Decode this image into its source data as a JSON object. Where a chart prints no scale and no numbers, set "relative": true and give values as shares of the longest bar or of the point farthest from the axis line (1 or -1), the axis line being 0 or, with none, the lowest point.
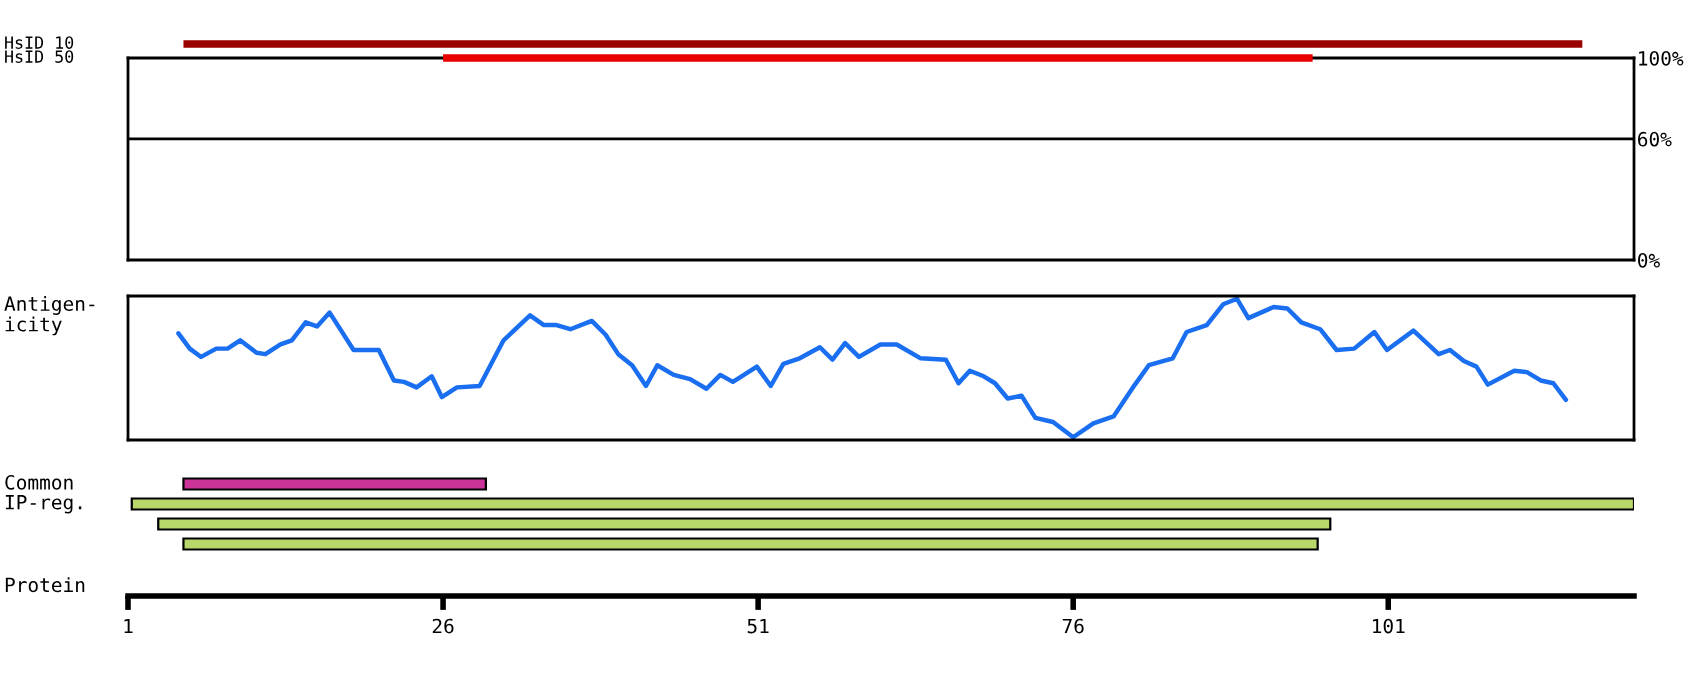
{
  "chart_data": [
    {
      "type": "bar",
      "orientation": "horizontal",
      "categories": [
        "HsID 10",
        "HsID 50"
      ],
      "base": [
        5.4,
        26
      ],
      "values": [
        111,
        69
      ],
      "colors": [
        "#990000",
        "#e80000"
      ],
      "xlim": [
        1,
        120.5
      ],
      "tick_labels": false
    },
    {
      "type": "line",
      "xlim": [
        1,
        120.5
      ],
      "ylim": [
        0,
        100
      ],
      "yticks": [
        {
          "value": 0,
          "label": "0%"
        },
        {
          "value": 60,
          "label": "60%"
        },
        {
          "value": 100,
          "label": "100%"
        }
      ],
      "ref_lines": [
        {
          "axis": "y",
          "value": 60,
          "color": "#000000"
        }
      ],
      "tick_labels": "y"
    },
    {
      "type": "line",
      "relative": true,
      "ylabel": "Antigen-\nicity",
      "xlim": [
        1,
        120.5
      ],
      "tick_labels": false,
      "series": [
        {
          "color": "#1a6ef0",
          "x": [
            5.0,
            5.9,
            6.8,
            8.0,
            8.9,
            9.9,
            11.2,
            11.9,
            13.1,
            14.0,
            15.1,
            16.0,
            17.0,
            18.9,
            20.9,
            22.1,
            22.9,
            23.9,
            25.1,
            25.9,
            27.1,
            28.9,
            30.8,
            32.9,
            34.0,
            35.0,
            36.1,
            37.8,
            38.9,
            39.9,
            41.0,
            42.1,
            43.0,
            44.3,
            45.6,
            46.9,
            48.0,
            49.0,
            50.9,
            52.0,
            53.0,
            54.3,
            55.9,
            56.9,
            57.9,
            59.0,
            60.7,
            62.0,
            63.9,
            65.9,
            66.9,
            67.8,
            68.9,
            69.8,
            70.8,
            71.9,
            73.0,
            74.4,
            76.0,
            77.6,
            79.2,
            80.9,
            82.0,
            83.9,
            85.0,
            86.6,
            87.9,
            89.0,
            89.9,
            91.9,
            93.0,
            94.1,
            95.6,
            96.9,
            98.3,
            99.9,
            100.9,
            103.0,
            105.0,
            105.9,
            107.0,
            108.0,
            108.9,
            111.0,
            112.0,
            113.1,
            114.1,
            115.1
          ],
          "values": [
            0.75,
            0.64,
            0.58,
            0.64,
            0.64,
            0.7,
            0.61,
            0.6,
            0.67,
            0.7,
            0.83,
            0.8,
            0.9,
            0.63,
            0.63,
            0.41,
            0.4,
            0.36,
            0.44,
            0.29,
            0.36,
            0.37,
            0.7,
            0.88,
            0.81,
            0.81,
            0.78,
            0.84,
            0.74,
            0.6,
            0.52,
            0.37,
            0.52,
            0.45,
            0.42,
            0.35,
            0.45,
            0.4,
            0.51,
            0.37,
            0.53,
            0.57,
            0.65,
            0.56,
            0.68,
            0.58,
            0.67,
            0.67,
            0.57,
            0.56,
            0.39,
            0.48,
            0.44,
            0.39,
            0.28,
            0.3,
            0.14,
            0.11,
            0.0,
            0.1,
            0.15,
            0.38,
            0.52,
            0.57,
            0.76,
            0.81,
            0.96,
            1.0,
            0.86,
            0.94,
            0.93,
            0.83,
            0.78,
            0.63,
            0.64,
            0.76,
            0.63,
            0.77,
            0.6,
            0.63,
            0.55,
            0.51,
            0.38,
            0.48,
            0.47,
            0.41,
            0.39,
            0.27
          ]
        }
      ]
    },
    {
      "type": "bar",
      "orientation": "horizontal",
      "categories": [
        "Common",
        "IP-reg.",
        null,
        null
      ],
      "base": [
        5.4,
        1.3,
        3.4,
        5.4
      ],
      "values": [
        24,
        119.2,
        93,
        90
      ],
      "colors": [
        "#cc3399",
        "#b8d86c",
        "#b8d86c",
        "#b8d86c"
      ],
      "xlabel": "Protein",
      "xlim": [
        1,
        120.5
      ],
      "xticks": [
        1,
        26,
        51,
        76,
        101
      ],
      "tick_labels": "x"
    }
  ]
}
